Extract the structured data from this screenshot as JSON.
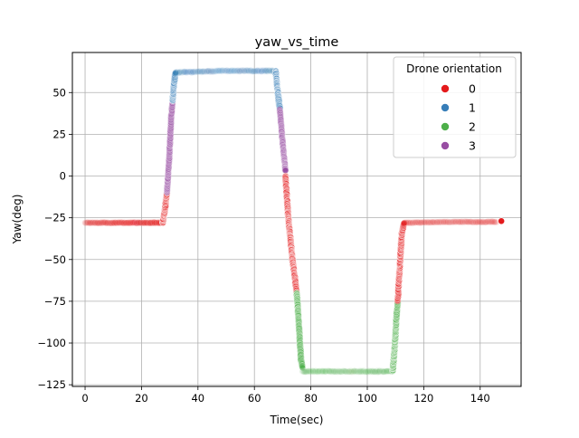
{
  "chart_data": {
    "type": "scatter",
    "title": "yaw_vs_time",
    "xlabel": "Time(sec)",
    "ylabel": "Yaw(deg)",
    "xlim": [
      -4.5,
      154.5
    ],
    "ylim": [
      -126,
      74
    ],
    "xticks": [
      0,
      20,
      40,
      60,
      80,
      100,
      120,
      140
    ],
    "yticks": [
      -125,
      -100,
      -75,
      -50,
      -25,
      0,
      25,
      50
    ],
    "grid": true,
    "legend": {
      "title": "Drone orientation",
      "placement": "top-right"
    },
    "series": [
      {
        "name": "0",
        "color": "#e41a1c"
      },
      {
        "name": "1",
        "color": "#377eb8"
      },
      {
        "name": "2",
        "color": "#4daf4a"
      },
      {
        "name": "3",
        "color": "#984ea3"
      }
    ],
    "segments": [
      {
        "series": "0",
        "points": [
          [
            0,
            -28
          ],
          [
            14,
            -28
          ],
          [
            27,
            -28
          ]
        ],
        "alpha": [
          0.06,
          0.08,
          0.12
        ],
        "density": 3,
        "jitter": 1.2
      },
      {
        "series": "0",
        "points": [
          [
            27.5,
            -28
          ],
          [
            28.3,
            -20
          ],
          [
            29,
            -10
          ]
        ],
        "alpha": [
          0.8,
          0.8,
          0.8
        ],
        "density": 2,
        "jitter": 1.0
      },
      {
        "series": "3",
        "points": [
          [
            29,
            -10
          ],
          [
            29.8,
            10
          ],
          [
            30.5,
            35
          ],
          [
            31,
            45
          ]
        ],
        "alpha": [
          0.5,
          0.45,
          0.4,
          0.4
        ],
        "density": 2,
        "jitter": 0.8
      },
      {
        "series": "1",
        "points": [
          [
            31,
            45
          ],
          [
            31.5,
            55
          ],
          [
            32,
            62
          ]
        ],
        "alpha": [
          0.8,
          0.7,
          0.5
        ],
        "density": 2,
        "jitter": 0.8
      },
      {
        "series": "1",
        "points": [
          [
            32,
            62
          ],
          [
            50,
            63
          ],
          [
            67,
            63
          ]
        ],
        "alpha": [
          0.08,
          0.06,
          0.08
        ],
        "density": 2,
        "jitter": 1.6
      },
      {
        "series": "1",
        "points": [
          [
            67.5,
            63
          ],
          [
            68.3,
            50
          ],
          [
            69,
            40
          ]
        ],
        "alpha": [
          0.8,
          0.8,
          0.6
        ],
        "density": 2,
        "jitter": 1.0
      },
      {
        "series": "3",
        "points": [
          [
            69,
            40
          ],
          [
            70,
            20
          ],
          [
            71,
            3
          ]
        ],
        "alpha": [
          0.4,
          0.5,
          0.6
        ],
        "density": 2,
        "jitter": 0.8
      },
      {
        "series": "0",
        "points": [
          [
            71,
            0
          ],
          [
            72,
            -25
          ],
          [
            73.5,
            -50
          ],
          [
            75,
            -70
          ]
        ],
        "alpha": [
          0.6,
          0.8,
          0.8,
          0.6
        ],
        "density": 2,
        "jitter": 1.0
      },
      {
        "series": "2",
        "points": [
          [
            75,
            -70
          ],
          [
            75.8,
            -90
          ],
          [
            76.5,
            -110
          ],
          [
            77,
            -115
          ]
        ],
        "alpha": [
          0.6,
          0.5,
          0.4,
          0.3
        ],
        "density": 2,
        "jitter": 1.0
      },
      {
        "series": "2",
        "points": [
          [
            77,
            -117
          ],
          [
            95,
            -117
          ],
          [
            109,
            -117
          ]
        ],
        "alpha": [
          0.07,
          0.06,
          0.08
        ],
        "density": 2,
        "jitter": 1.6
      },
      {
        "series": "2",
        "points": [
          [
            109,
            -117
          ],
          [
            109.8,
            -100
          ],
          [
            110.3,
            -85
          ],
          [
            110.8,
            -75
          ]
        ],
        "alpha": [
          0.8,
          0.8,
          0.6,
          0.5
        ],
        "density": 2,
        "jitter": 1.0
      },
      {
        "series": "0",
        "points": [
          [
            110.8,
            -75
          ],
          [
            111.5,
            -55
          ],
          [
            112.2,
            -35
          ],
          [
            113,
            -28
          ]
        ],
        "alpha": [
          0.5,
          0.8,
          0.7,
          0.5
        ],
        "density": 2,
        "jitter": 1.0
      },
      {
        "series": "0",
        "points": [
          [
            113,
            -28
          ],
          [
            130,
            -27.5
          ],
          [
            146,
            -27.5
          ]
        ],
        "alpha": [
          0.07,
          0.06,
          0.07
        ],
        "density": 2,
        "jitter": 1.2
      },
      {
        "series": "0",
        "points": [
          [
            147.5,
            -27
          ]
        ],
        "alpha": [
          1.0
        ],
        "density": 1,
        "jitter": 0
      }
    ]
  }
}
